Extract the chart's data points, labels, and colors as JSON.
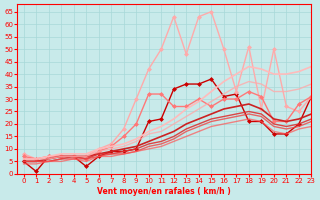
{
  "xlabel": "Vent moyen/en rafales ( km/h )",
  "xlim": [
    -0.5,
    23
  ],
  "ylim": [
    0,
    68
  ],
  "yticks": [
    0,
    5,
    10,
    15,
    20,
    25,
    30,
    35,
    40,
    45,
    50,
    55,
    60,
    65
  ],
  "xticks": [
    0,
    1,
    2,
    3,
    4,
    5,
    6,
    7,
    8,
    9,
    10,
    11,
    12,
    13,
    14,
    15,
    16,
    17,
    18,
    19,
    20,
    21,
    22,
    23
  ],
  "bg_color": "#c8eaea",
  "grid_color": "#a8d8d8",
  "lines": [
    {
      "x": [
        0,
        1,
        2,
        3,
        4,
        5,
        6,
        7,
        8,
        9,
        10,
        11,
        12,
        13,
        14,
        15,
        16,
        17,
        18,
        19,
        20,
        21,
        22,
        23
      ],
      "y": [
        5,
        1,
        7,
        7,
        7,
        3,
        7,
        9,
        9,
        10,
        21,
        22,
        34,
        36,
        36,
        38,
        31,
        32,
        21,
        21,
        16,
        16,
        20,
        31
      ],
      "color": "#cc0000",
      "lw": 1.0,
      "marker": "D",
      "ms": 2.5,
      "alpha": 1.0
    },
    {
      "x": [
        0,
        1,
        2,
        3,
        4,
        5,
        6,
        7,
        8,
        9,
        10,
        11,
        12,
        13,
        14,
        15,
        16,
        17,
        18,
        19,
        20,
        21,
        22,
        23
      ],
      "y": [
        8,
        6,
        7,
        7,
        7,
        7,
        10,
        12,
        18,
        30,
        42,
        50,
        63,
        48,
        63,
        65,
        50,
        33,
        51,
        26,
        50,
        27,
        25,
        31
      ],
      "color": "#ffaaaa",
      "lw": 1.0,
      "marker": "D",
      "ms": 2.5,
      "alpha": 1.0
    },
    {
      "x": [
        0,
        1,
        2,
        3,
        4,
        5,
        6,
        7,
        8,
        9,
        10,
        11,
        12,
        13,
        14,
        15,
        16,
        17,
        18,
        19,
        20,
        21,
        22,
        23
      ],
      "y": [
        7,
        6,
        7,
        7,
        7,
        6,
        9,
        11,
        15,
        20,
        32,
        32,
        27,
        27,
        30,
        27,
        30,
        30,
        33,
        31,
        21,
        21,
        28,
        31
      ],
      "color": "#ff7777",
      "lw": 1.0,
      "marker": "D",
      "ms": 2.5,
      "alpha": 1.0
    },
    {
      "x": [
        0,
        1,
        2,
        3,
        4,
        5,
        6,
        7,
        8,
        9,
        10,
        11,
        12,
        13,
        14,
        15,
        16,
        17,
        18,
        19,
        20,
        21,
        22,
        23
      ],
      "y": [
        5,
        5,
        6,
        7,
        7,
        7,
        8,
        9,
        10,
        11,
        13,
        15,
        17,
        20,
        22,
        24,
        26,
        27,
        28,
        26,
        22,
        21,
        22,
        24
      ],
      "color": "#cc2222",
      "lw": 1.2,
      "marker": null,
      "ms": 0,
      "alpha": 1.0
    },
    {
      "x": [
        0,
        1,
        2,
        3,
        4,
        5,
        6,
        7,
        8,
        9,
        10,
        11,
        12,
        13,
        14,
        15,
        16,
        17,
        18,
        19,
        20,
        21,
        22,
        23
      ],
      "y": [
        5,
        5,
        5,
        6,
        7,
        6,
        8,
        8,
        9,
        10,
        12,
        13,
        15,
        18,
        20,
        22,
        23,
        24,
        25,
        24,
        20,
        19,
        20,
        22
      ],
      "color": "#dd3333",
      "lw": 1.0,
      "marker": null,
      "ms": 0,
      "alpha": 0.9
    },
    {
      "x": [
        0,
        1,
        2,
        3,
        4,
        5,
        6,
        7,
        8,
        9,
        10,
        11,
        12,
        13,
        14,
        15,
        16,
        17,
        18,
        19,
        20,
        21,
        22,
        23
      ],
      "y": [
        5,
        5,
        5,
        6,
        6,
        6,
        7,
        8,
        8,
        9,
        11,
        12,
        14,
        17,
        19,
        21,
        22,
        23,
        24,
        23,
        19,
        18,
        19,
        21
      ],
      "color": "#ee4444",
      "lw": 1.0,
      "marker": null,
      "ms": 0,
      "alpha": 0.8
    },
    {
      "x": [
        0,
        1,
        2,
        3,
        4,
        5,
        6,
        7,
        8,
        9,
        10,
        11,
        12,
        13,
        14,
        15,
        16,
        17,
        18,
        19,
        20,
        21,
        22,
        23
      ],
      "y": [
        4,
        4,
        5,
        5,
        6,
        5,
        7,
        7,
        8,
        9,
        10,
        11,
        13,
        15,
        17,
        19,
        20,
        21,
        22,
        21,
        17,
        16,
        18,
        19
      ],
      "color": "#ff5555",
      "lw": 1.0,
      "marker": null,
      "ms": 0,
      "alpha": 0.7
    },
    {
      "x": [
        0,
        1,
        2,
        3,
        4,
        5,
        6,
        7,
        8,
        9,
        10,
        11,
        12,
        13,
        14,
        15,
        16,
        17,
        18,
        19,
        20,
        21,
        22,
        23
      ],
      "y": [
        6,
        6,
        7,
        8,
        8,
        8,
        10,
        11,
        12,
        14,
        17,
        19,
        22,
        26,
        29,
        33,
        37,
        40,
        43,
        42,
        40,
        40,
        41,
        43
      ],
      "color": "#ffbbbb",
      "lw": 1.2,
      "marker": null,
      "ms": 0,
      "alpha": 1.0
    },
    {
      "x": [
        0,
        1,
        2,
        3,
        4,
        5,
        6,
        7,
        8,
        9,
        10,
        11,
        12,
        13,
        14,
        15,
        16,
        17,
        18,
        19,
        20,
        21,
        22,
        23
      ],
      "y": [
        6,
        6,
        6,
        7,
        7,
        7,
        9,
        10,
        11,
        13,
        16,
        17,
        20,
        23,
        26,
        29,
        32,
        35,
        37,
        36,
        33,
        33,
        34,
        36
      ],
      "color": "#ffaaaa",
      "lw": 1.0,
      "marker": null,
      "ms": 0,
      "alpha": 0.8
    }
  ]
}
